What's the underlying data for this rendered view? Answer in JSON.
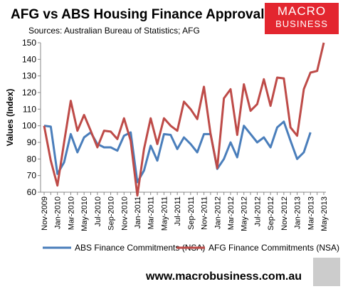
{
  "chart_data": {
    "type": "line",
    "title": "AFG vs ABS Housing Finance Approvals",
    "subtitle": "Sources: Australian Bureau of Statistics; AFG",
    "y_label": "Values (Index)",
    "logo": [
      "MACRO",
      "BUSINESS"
    ],
    "footer": "www.macrobusiness.com.au",
    "categories": [
      "Nov-2009",
      null,
      "Jan-2010",
      null,
      "Mar-2010",
      null,
      "May-2010",
      null,
      "Jul-2010",
      null,
      "Sep-2010",
      null,
      "Nov-2010",
      null,
      "Jan-2011",
      null,
      "Mar-2011",
      null,
      "May-2011",
      null,
      "Jul-2011",
      null,
      "Sep-2011",
      null,
      "Nov-2011",
      null,
      "Jan-2012",
      null,
      "Mar-2012",
      null,
      "May-2012",
      null,
      "Jul-2012",
      null,
      "Sep-2012",
      null,
      "Nov-2012",
      null,
      "Jan-2013",
      null,
      "Mar-2013",
      null,
      "May-2013"
    ],
    "series": [
      {
        "name": "ABS Finance Commitments (NSA)",
        "color": "#4a7ebb",
        "values": [
          100,
          99.5,
          71,
          78,
          95,
          84,
          93,
          96,
          89,
          87,
          87,
          85,
          94,
          96,
          66,
          73,
          88,
          79,
          95,
          94.5,
          86,
          93,
          89,
          84,
          95,
          95,
          74,
          80,
          90,
          81,
          100,
          95,
          90,
          93,
          87,
          99,
          102.5,
          91,
          80,
          84,
          96,
          null,
          null
        ]
      },
      {
        "name": "AFG Finance Commitments (NSA)",
        "color": "#be4b48",
        "values": [
          100,
          79,
          64,
          90,
          115,
          97,
          106.5,
          97,
          87,
          97,
          96.5,
          92,
          104.5,
          91,
          58,
          86,
          104.5,
          89,
          104.5,
          100,
          97,
          114.5,
          110,
          104,
          123.5,
          95,
          74.5,
          116.5,
          122,
          94.5,
          125,
          109,
          113,
          128,
          112,
          129,
          128.5,
          99,
          94,
          122,
          132,
          133,
          150
        ]
      }
    ],
    "ylim": [
      60,
      150
    ],
    "yticks": [
      60,
      70,
      80,
      90,
      100,
      110,
      120,
      130,
      140,
      150
    ],
    "grid": false
  }
}
